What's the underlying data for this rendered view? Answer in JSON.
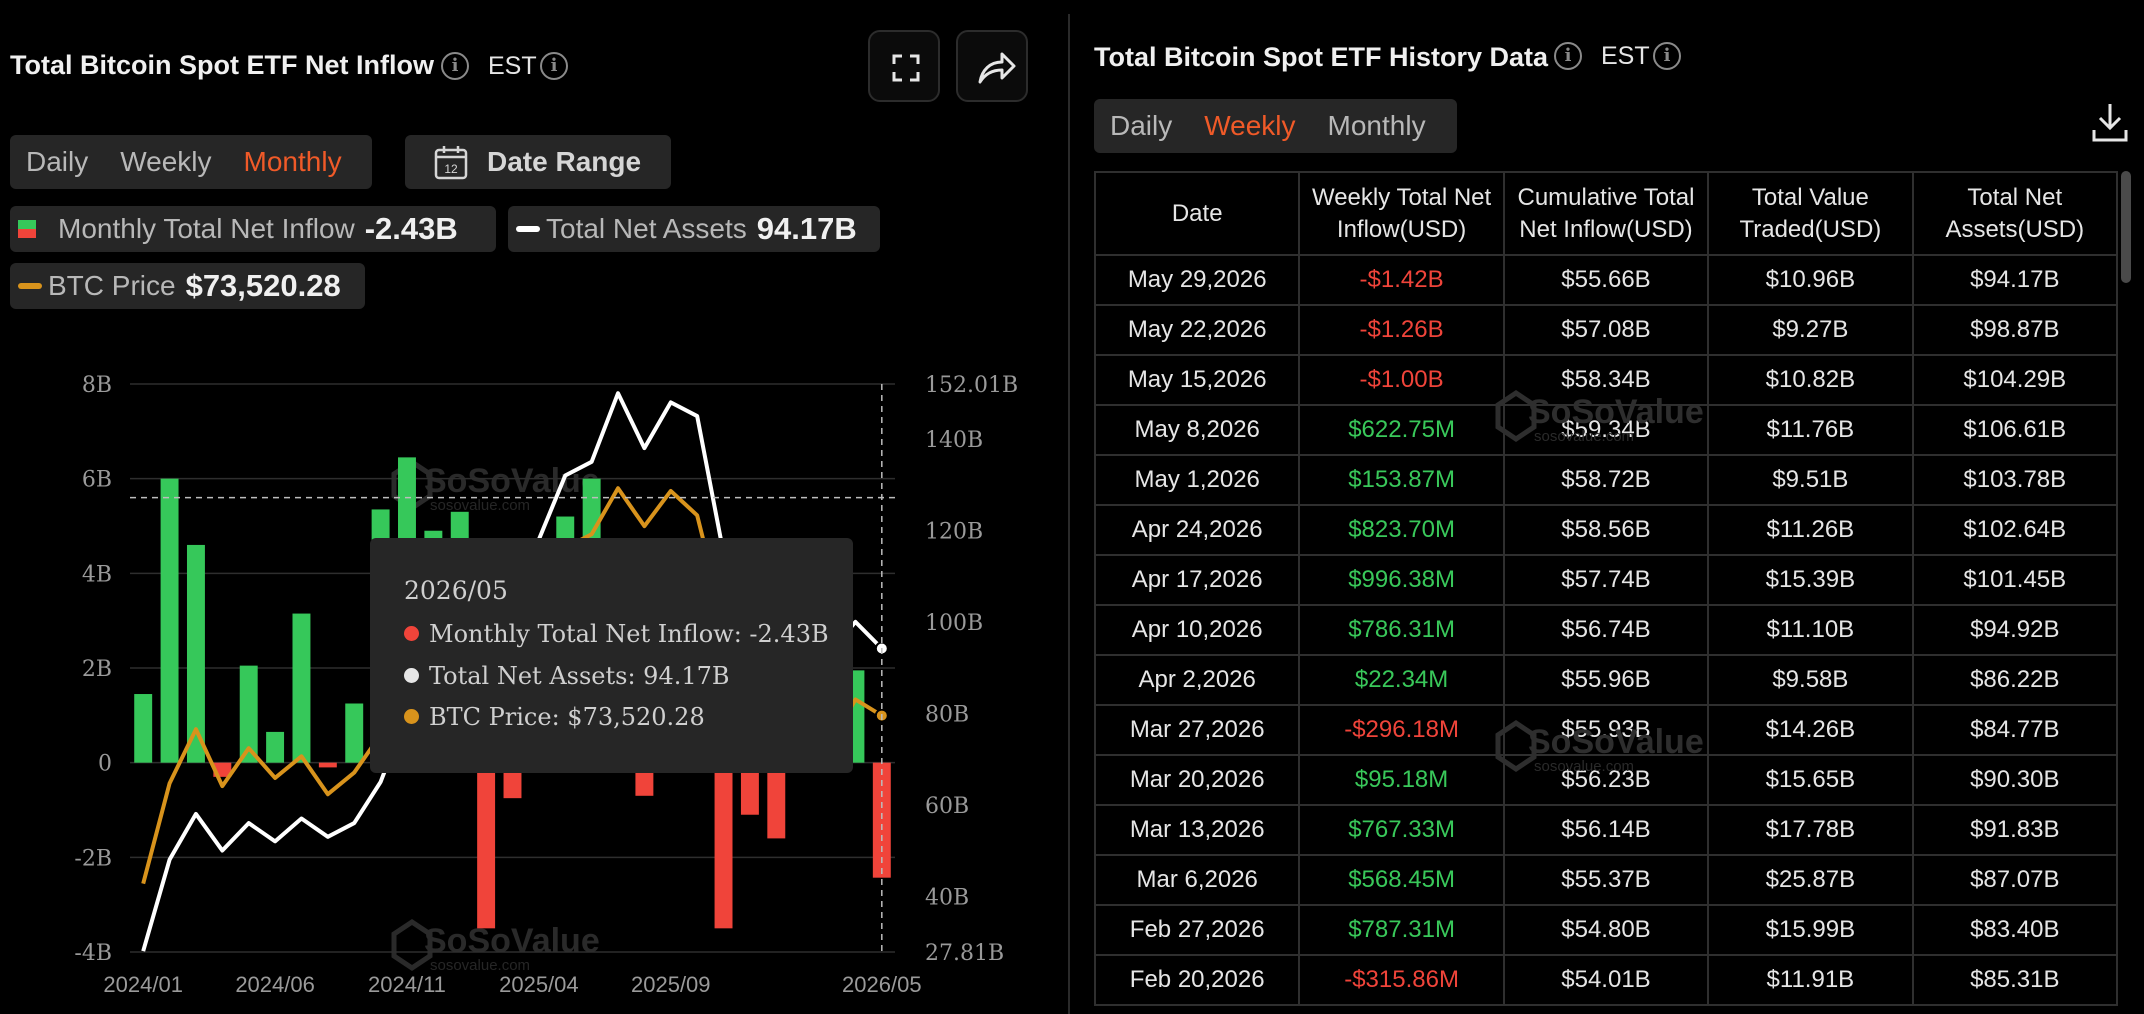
{
  "left_panel": {
    "title": "Total Bitcoin Spot ETF Net Inflow",
    "timezone": "EST",
    "period_tabs": [
      {
        "label": "Daily",
        "active": false
      },
      {
        "label": "Weekly",
        "active": false
      },
      {
        "label": "Monthly",
        "active": true
      }
    ],
    "date_range_label": "Date Range",
    "calendar_day": "12",
    "legend": {
      "inflow_name": "Monthly Total Net Inflow",
      "inflow_value": "-2.43B",
      "assets_name": "Total Net Assets",
      "assets_value": "94.17B",
      "btc_name": "BTC Price",
      "btc_value": "$73,520.28"
    },
    "tooltip": {
      "date": "2026/05",
      "inflow": "Monthly Total Net Inflow: -2.43B",
      "assets": "Total Net Assets: 94.17B",
      "btc": "BTC Price: $73,520.28"
    },
    "watermark": "SoSoValue",
    "watermark_sub": "sosovalue.com"
  },
  "colors": {
    "accent": "#f05a28",
    "inflow_positive": "#36c85a",
    "inflow_negative": "#f0443a",
    "assets_line": "#ffffff",
    "btc_line": "#d8931c",
    "background": "#000000",
    "panel": "#262626"
  },
  "chart_data": {
    "type": "bar",
    "title": "Total Bitcoin Spot ETF Net Inflow",
    "x_tick_labels": [
      "2024/01",
      "2024/06",
      "2024/11",
      "2025/04",
      "2025/09",
      "2026/05"
    ],
    "categories": [
      "2024/01",
      "2024/02",
      "2024/03",
      "2024/04",
      "2024/05",
      "2024/06",
      "2024/07",
      "2024/08",
      "2024/09",
      "2024/10",
      "2024/11",
      "2024/12",
      "2025/01",
      "2025/02",
      "2025/03",
      "2025/04",
      "2025/05",
      "2025/06",
      "2025/07",
      "2025/08",
      "2025/09",
      "2025/10",
      "2025/11",
      "2025/12",
      "2026/01",
      "2026/02",
      "2026/03",
      "2026/04",
      "2026/05"
    ],
    "left_axis": {
      "ticks": [
        "8B",
        "6B",
        "4B",
        "2B",
        "0",
        "-2B",
        "-4B"
      ],
      "values": [
        8,
        6,
        4,
        2,
        0,
        -2,
        -4
      ],
      "unit": "B"
    },
    "right_axis": {
      "ticks": [
        "152.01B",
        "140B",
        "120B",
        "100B",
        "80B",
        "60B",
        "40B",
        "27.81B"
      ],
      "values": [
        152.01,
        140,
        120,
        100,
        80,
        60,
        40,
        27.81
      ],
      "unit": "B"
    },
    "crosshair": {
      "category": "2026/05",
      "left_value": 5.6
    },
    "series": [
      {
        "name": "Monthly Total Net Inflow",
        "type": "bar",
        "axis": "left",
        "values": [
          1.45,
          6.0,
          4.6,
          -0.3,
          2.05,
          0.65,
          3.15,
          -0.1,
          1.25,
          5.35,
          6.45,
          4.9,
          5.3,
          -3.5,
          -0.75,
          1.1,
          5.2,
          6.0,
          3.8,
          -0.7,
          3.9,
          3.4,
          -3.5,
          -1.1,
          -1.6,
          -0.2,
          1.3,
          1.95,
          -2.43
        ]
      },
      {
        "name": "Total Net Assets",
        "type": "line",
        "axis": "right",
        "values": [
          28.0,
          48.0,
          58.0,
          50.0,
          56.0,
          52.0,
          57.0,
          53.0,
          56.0,
          65.0,
          80.0,
          104.0,
          108.0,
          102.0,
          110.0,
          118.0,
          132.0,
          135.0,
          150.0,
          138.0,
          148.0,
          145.0,
          115.0,
          102.0,
          95.0,
          88.0,
          93.0,
          100.0,
          94.17
        ]
      },
      {
        "name": "BTC Price",
        "type": "line",
        "axis": "right",
        "values": [
          42500,
          61000,
          71000,
          60500,
          67500,
          62000,
          66000,
          59000,
          63000,
          70000,
          97000,
          93500,
          102000,
          84500,
          82500,
          94000,
          104500,
          107000,
          115500,
          108500,
          115000,
          110500,
          91000,
          88000,
          84500,
          66500,
          68000,
          76500,
          73520.28
        ]
      }
    ]
  },
  "right_panel": {
    "title": "Total Bitcoin Spot ETF History Data",
    "timezone": "EST",
    "period_tabs": [
      {
        "label": "Daily",
        "active": false
      },
      {
        "label": "Weekly",
        "active": true
      },
      {
        "label": "Monthly",
        "active": false
      }
    ],
    "columns": [
      "Date",
      "Weekly Total Net Inflow(USD)",
      "Cumulative Total Net Inflow(USD)",
      "Total Value Traded(USD)",
      "Total Net Assets(USD)"
    ],
    "rows": [
      {
        "date": "May 29,2026",
        "inflow": "-$1.42B",
        "sign": "neg",
        "cumulative": "$55.66B",
        "traded": "$10.96B",
        "assets": "$94.17B"
      },
      {
        "date": "May 22,2026",
        "inflow": "-$1.26B",
        "sign": "neg",
        "cumulative": "$57.08B",
        "traded": "$9.27B",
        "assets": "$98.87B"
      },
      {
        "date": "May 15,2026",
        "inflow": "-$1.00B",
        "sign": "neg",
        "cumulative": "$58.34B",
        "traded": "$10.82B",
        "assets": "$104.29B"
      },
      {
        "date": "May 8,2026",
        "inflow": "$622.75M",
        "sign": "pos",
        "cumulative": "$59.34B",
        "traded": "$11.76B",
        "assets": "$106.61B"
      },
      {
        "date": "May 1,2026",
        "inflow": "$153.87M",
        "sign": "pos",
        "cumulative": "$58.72B",
        "traded": "$9.51B",
        "assets": "$103.78B"
      },
      {
        "date": "Apr 24,2026",
        "inflow": "$823.70M",
        "sign": "pos",
        "cumulative": "$58.56B",
        "traded": "$11.26B",
        "assets": "$102.64B"
      },
      {
        "date": "Apr 17,2026",
        "inflow": "$996.38M",
        "sign": "pos",
        "cumulative": "$57.74B",
        "traded": "$15.39B",
        "assets": "$101.45B"
      },
      {
        "date": "Apr 10,2026",
        "inflow": "$786.31M",
        "sign": "pos",
        "cumulative": "$56.74B",
        "traded": "$11.10B",
        "assets": "$94.92B"
      },
      {
        "date": "Apr 2,2026",
        "inflow": "$22.34M",
        "sign": "pos",
        "cumulative": "$55.96B",
        "traded": "$9.58B",
        "assets": "$86.22B"
      },
      {
        "date": "Mar 27,2026",
        "inflow": "-$296.18M",
        "sign": "neg",
        "cumulative": "$55.93B",
        "traded": "$14.26B",
        "assets": "$84.77B"
      },
      {
        "date": "Mar 20,2026",
        "inflow": "$95.18M",
        "sign": "pos",
        "cumulative": "$56.23B",
        "traded": "$15.65B",
        "assets": "$90.30B"
      },
      {
        "date": "Mar 13,2026",
        "inflow": "$767.33M",
        "sign": "pos",
        "cumulative": "$56.14B",
        "traded": "$17.78B",
        "assets": "$91.83B"
      },
      {
        "date": "Mar 6,2026",
        "inflow": "$568.45M",
        "sign": "pos",
        "cumulative": "$55.37B",
        "traded": "$25.87B",
        "assets": "$87.07B"
      },
      {
        "date": "Feb 27,2026",
        "inflow": "$787.31M",
        "sign": "pos",
        "cumulative": "$54.80B",
        "traded": "$15.99B",
        "assets": "$83.40B"
      },
      {
        "date": "Feb 20,2026",
        "inflow": "-$315.86M",
        "sign": "neg",
        "cumulative": "$54.01B",
        "traded": "$11.91B",
        "assets": "$85.31B"
      }
    ],
    "watermark": "SoSoValue",
    "watermark_sub": "sosovalue.com"
  }
}
